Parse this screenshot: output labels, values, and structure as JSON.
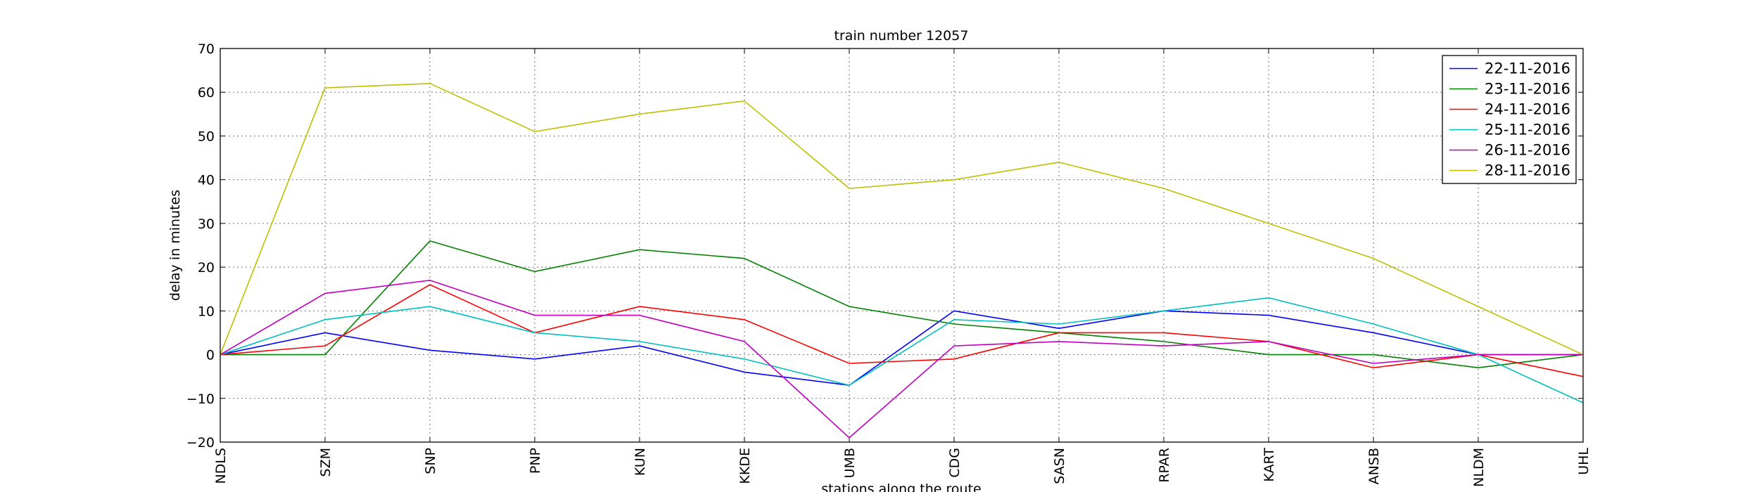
{
  "chart_data": {
    "type": "line",
    "title": "train number 12057",
    "x_label": "stations along the route",
    "y_label": "delay in minutes",
    "categories": [
      "NDLS",
      "SZM",
      "SNP",
      "PNP",
      "KUN",
      "KKDE",
      "UMB",
      "CDG",
      "SASN",
      "RPAR",
      "KART",
      "ANSB",
      "NLDM",
      "UHL"
    ],
    "series": [
      {
        "name": "22-11-2016",
        "color": "#0000ff",
        "values": [
          0,
          5,
          1,
          -1,
          2,
          -4,
          -7,
          10,
          6,
          10,
          9,
          5,
          0,
          0
        ]
      },
      {
        "name": "23-11-2016",
        "color": "#008000",
        "values": [
          0,
          0,
          26,
          19,
          24,
          22,
          11,
          7,
          5,
          3,
          0,
          0,
          -3,
          0
        ]
      },
      {
        "name": "24-11-2016",
        "color": "#ff0000",
        "values": [
          0,
          2,
          16,
          5,
          11,
          8,
          -2,
          -1,
          5,
          5,
          3,
          -3,
          0,
          -5
        ]
      },
      {
        "name": "25-11-2016",
        "color": "#00bfbf",
        "values": [
          0,
          8,
          11,
          5,
          3,
          -1,
          -7,
          8,
          7,
          10,
          13,
          7,
          0,
          -11
        ]
      },
      {
        "name": "26-11-2016",
        "color": "#bf00bf",
        "values": [
          0,
          14,
          17,
          9,
          9,
          3,
          -19,
          2,
          3,
          2,
          3,
          -2,
          0,
          0
        ]
      },
      {
        "name": "28-11-2016",
        "color": "#bfbf00",
        "values": [
          0,
          61,
          62,
          51,
          55,
          58,
          38,
          40,
          44,
          38,
          30,
          22,
          11,
          0
        ]
      }
    ],
    "ylim": [
      -20,
      70
    ],
    "yticks": [
      {
        "value": -20,
        "label": "−20"
      },
      {
        "value": -10,
        "label": "−10"
      },
      0,
      10,
      20,
      30,
      40,
      50,
      60,
      70
    ],
    "grid": true,
    "legend": "upper right"
  }
}
